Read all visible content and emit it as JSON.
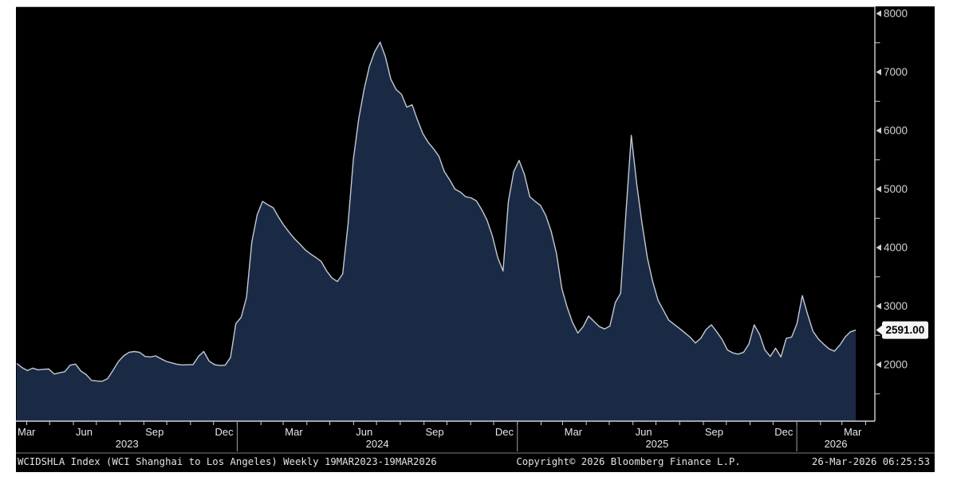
{
  "window": {
    "background": "#ffffff"
  },
  "panel": {
    "background": "#000000",
    "frame_color": "#a9afb8",
    "axis_color": "#ced3da",
    "year_separator_color": "#9aa0a8"
  },
  "status_bar": {
    "left": "WCIDSHLA Index (WCI Shanghai to Los Angeles) Weekly 19MAR2023-19MAR2026",
    "center": "Copyright© 2026 Bloomberg Finance L.P.",
    "right": "26-Mar-2026 06:25:53",
    "text_color": "#e0e3e7",
    "separator_color": "#7a8089"
  },
  "y_axis": {
    "major_ticks": [
      8000,
      7000,
      6000,
      5000,
      4000,
      3000,
      2000
    ],
    "minor_tick_values": [
      7500,
      6500,
      5500,
      4500,
      3500,
      2500,
      1500
    ],
    "label_color": "#ced2d7",
    "last_value_label": "2591.00",
    "badge": {
      "bg": "#f4f5f6",
      "text_color": "#000000"
    }
  },
  "x_axis": {
    "quarter_labels": [
      "Mar",
      "Jun",
      "Sep",
      "Dec",
      "Mar",
      "Jun",
      "Sep",
      "Dec",
      "Mar",
      "Jun",
      "Sep",
      "Dec",
      "Mar"
    ],
    "year_labels": [
      "2023",
      "2024",
      "2025",
      "2026"
    ],
    "label_color": "#e4e7eb"
  },
  "chart_data": {
    "type": "area",
    "title": "WCIDSHLA Index (WCI Shanghai to Los Angeles)",
    "frequency": "Weekly",
    "date_range": "19MAR2023-19MAR2026",
    "start_date": "2023-03-19",
    "end_date": "2026-03-19",
    "ylabel": "",
    "xlabel": "",
    "ylim": [
      1030,
      8120
    ],
    "y_ticks": [
      2000,
      3000,
      4000,
      5000,
      6000,
      7000,
      8000
    ],
    "grid": false,
    "legend_position": "none",
    "last_value": 2591.0,
    "series": [
      {
        "name": "WCIDSHLA Index",
        "line_color": "#c3c9d2",
        "fill_color": "#1b2a44",
        "values": [
          2020,
          1950,
          1900,
          1940,
          1910,
          1920,
          1925,
          1840,
          1860,
          1880,
          1990,
          2010,
          1890,
          1830,
          1730,
          1720,
          1715,
          1760,
          1900,
          2050,
          2150,
          2210,
          2225,
          2210,
          2140,
          2130,
          2150,
          2100,
          2055,
          2030,
          2005,
          1995,
          1998,
          2000,
          2140,
          2225,
          2060,
          2000,
          1985,
          1990,
          2120,
          2700,
          2810,
          3150,
          4100,
          4560,
          4790,
          4730,
          4680,
          4520,
          4380,
          4260,
          4150,
          4060,
          3960,
          3890,
          3830,
          3760,
          3600,
          3480,
          3420,
          3550,
          4400,
          5510,
          6200,
          6700,
          7100,
          7350,
          7510,
          7260,
          6880,
          6700,
          6620,
          6400,
          6440,
          6180,
          5950,
          5800,
          5690,
          5560,
          5300,
          5160,
          5000,
          4950,
          4870,
          4850,
          4800,
          4650,
          4470,
          4200,
          3830,
          3600,
          4790,
          5300,
          5490,
          5250,
          4870,
          4790,
          4720,
          4550,
          4280,
          3900,
          3300,
          2980,
          2720,
          2540,
          2650,
          2830,
          2740,
          2650,
          2610,
          2660,
          3060,
          3220,
          4600,
          5920,
          5100,
          4420,
          3830,
          3420,
          3100,
          2930,
          2760,
          2690,
          2620,
          2545,
          2470,
          2370,
          2450,
          2600,
          2680,
          2560,
          2430,
          2250,
          2200,
          2180,
          2210,
          2350,
          2680,
          2520,
          2250,
          2140,
          2280,
          2130,
          2450,
          2470,
          2700,
          3180,
          2860,
          2570,
          2440,
          2350,
          2270,
          2230,
          2330,
          2470,
          2560,
          2591
        ]
      }
    ]
  }
}
